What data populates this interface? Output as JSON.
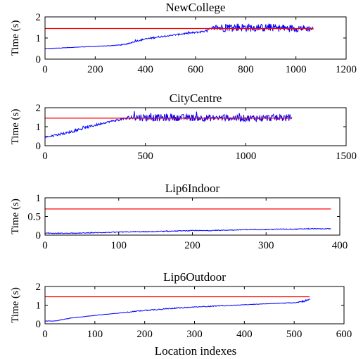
{
  "figure": {
    "xlabel": "Location indexes"
  },
  "colors": {
    "measured": "#0000ff",
    "threshold": "#ff0000"
  },
  "chart_data": [
    {
      "type": "line",
      "title": "NewCollege",
      "xlabel": "",
      "ylabel": "Time (s)",
      "xlim": [
        0,
        1200
      ],
      "ylim": [
        0,
        2
      ],
      "xticks": [
        0,
        200,
        400,
        600,
        800,
        1000,
        1200
      ],
      "yticks": [
        0,
        1,
        2
      ],
      "grid": false,
      "threshold": {
        "x": [
          0,
          1070
        ],
        "y": 1.45
      },
      "series": [
        {
          "x": [
            0,
            50,
            100,
            150,
            200,
            250,
            300,
            330,
            360,
            400,
            450,
            500,
            550,
            600,
            640,
            660,
            680,
            700,
            750,
            800,
            850,
            900,
            950,
            1000,
            1050,
            1070
          ],
          "y": [
            0.5,
            0.52,
            0.55,
            0.58,
            0.6,
            0.63,
            0.67,
            0.72,
            0.85,
            0.95,
            1.05,
            1.12,
            1.2,
            1.26,
            1.33,
            1.42,
            1.5,
            1.48,
            1.52,
            1.5,
            1.48,
            1.5,
            1.46,
            1.47,
            1.45,
            1.44
          ],
          "noise": [
            0.01,
            0.01,
            0.01,
            0.01,
            0.01,
            0.01,
            0.02,
            0.03,
            0.04,
            0.04,
            0.04,
            0.03,
            0.04,
            0.04,
            0.05,
            0.08,
            0.15,
            0.2,
            0.2,
            0.2,
            0.18,
            0.18,
            0.18,
            0.18,
            0.15,
            0.1
          ]
        }
      ]
    },
    {
      "type": "line",
      "title": "CityCentre",
      "xlabel": "",
      "ylabel": "Time (s)",
      "xlim": [
        0,
        1500
      ],
      "ylim": [
        0,
        2
      ],
      "xticks": [
        0,
        500,
        1000,
        1500
      ],
      "yticks": [
        0,
        1,
        2
      ],
      "grid": false,
      "threshold": {
        "x": [
          0,
          1230
        ],
        "y": 1.45
      },
      "series": [
        {
          "x": [
            0,
            50,
            100,
            150,
            200,
            250,
            300,
            350,
            400,
            420,
            450,
            500,
            600,
            700,
            800,
            900,
            1000,
            1100,
            1200,
            1230
          ],
          "y": [
            0.45,
            0.55,
            0.65,
            0.8,
            0.95,
            1.08,
            1.22,
            1.33,
            1.42,
            1.48,
            1.5,
            1.48,
            1.47,
            1.48,
            1.46,
            1.47,
            1.45,
            1.46,
            1.47,
            1.5
          ],
          "noise": [
            0.03,
            0.05,
            0.06,
            0.07,
            0.07,
            0.06,
            0.05,
            0.05,
            0.08,
            0.12,
            0.2,
            0.2,
            0.18,
            0.18,
            0.18,
            0.18,
            0.18,
            0.18,
            0.2,
            0.15
          ]
        }
      ]
    },
    {
      "type": "line",
      "title": "Lip6Indoor",
      "xlabel": "",
      "ylabel": "Time (s)",
      "xlim": [
        0,
        400
      ],
      "ylim": [
        0,
        1
      ],
      "xticks": [
        0,
        100,
        200,
        300,
        400
      ],
      "yticks": [
        0,
        0.5,
        1
      ],
      "grid": false,
      "threshold": {
        "x": [
          0,
          388
        ],
        "y": 0.7
      },
      "series": [
        {
          "x": [
            0,
            20,
            40,
            60,
            80,
            100,
            120,
            140,
            160,
            180,
            200,
            220,
            240,
            260,
            280,
            300,
            320,
            340,
            360,
            380,
            388
          ],
          "y": [
            0.05,
            0.05,
            0.05,
            0.06,
            0.07,
            0.08,
            0.09,
            0.09,
            0.1,
            0.11,
            0.12,
            0.12,
            0.13,
            0.14,
            0.15,
            0.15,
            0.16,
            0.16,
            0.17,
            0.17,
            0.17
          ],
          "noise": [
            0.01,
            0.01,
            0.01,
            0.01,
            0.01,
            0.01,
            0.01,
            0.01,
            0.01,
            0.01,
            0.01,
            0.01,
            0.01,
            0.01,
            0.01,
            0.01,
            0.01,
            0.01,
            0.01,
            0.01,
            0.01
          ]
        }
      ]
    },
    {
      "type": "line",
      "title": "Lip6Outdoor",
      "xlabel": "Location indexes",
      "ylabel": "Time (s)",
      "xlim": [
        0,
        600
      ],
      "ylim": [
        0,
        2
      ],
      "xticks": [
        0,
        100,
        200,
        300,
        400,
        500,
        600
      ],
      "yticks": [
        0,
        1,
        2
      ],
      "grid": false,
      "threshold": {
        "x": [
          0,
          531
        ],
        "y": 1.45
      },
      "series": [
        {
          "x": [
            0,
            20,
            50,
            100,
            150,
            200,
            250,
            300,
            350,
            400,
            450,
            500,
            520,
            531
          ],
          "y": [
            0.15,
            0.15,
            0.3,
            0.45,
            0.58,
            0.72,
            0.82,
            0.9,
            0.96,
            1.02,
            1.08,
            1.13,
            1.22,
            1.3
          ],
          "noise": [
            0.01,
            0.01,
            0.01,
            0.01,
            0.01,
            0.03,
            0.03,
            0.02,
            0.02,
            0.01,
            0.01,
            0.02,
            0.05,
            0.05
          ]
        }
      ]
    }
  ]
}
